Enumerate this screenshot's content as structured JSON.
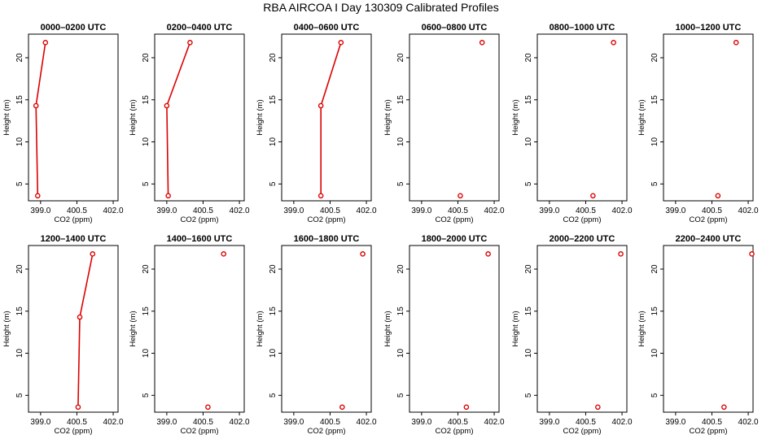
{
  "figure_title": "RBA AIRCOA I  Day 130309  Calibrated Profiles",
  "chart_data": [
    {
      "type": "line",
      "title": "0000–0200 UTC",
      "xlabel": "CO2 (ppm)",
      "ylabel": "Height (m)",
      "x_ticks": [
        "399.0",
        "400.5",
        "402.0"
      ],
      "y_ticks": [
        "5",
        "10",
        "15",
        "20"
      ],
      "xlim": [
        398.5,
        402.2
      ],
      "ylim": [
        3,
        22.8
      ],
      "connected": true,
      "points": [
        {
          "x": 398.88,
          "y": 3.6
        },
        {
          "x": 398.81,
          "y": 14.3
        },
        {
          "x": 399.2,
          "y": 21.8
        }
      ]
    },
    {
      "type": "line",
      "title": "0200–0400 UTC",
      "xlabel": "CO2 (ppm)",
      "ylabel": "Height (m)",
      "x_ticks": [
        "399.0",
        "400.5",
        "402.0"
      ],
      "y_ticks": [
        "5",
        "10",
        "15",
        "20"
      ],
      "xlim": [
        398.5,
        402.2
      ],
      "ylim": [
        3,
        22.8
      ],
      "connected": true,
      "points": [
        {
          "x": 399.06,
          "y": 3.6
        },
        {
          "x": 399.0,
          "y": 14.3
        },
        {
          "x": 399.96,
          "y": 21.8
        }
      ]
    },
    {
      "type": "line",
      "title": "0400–0600 UTC",
      "xlabel": "CO2 (ppm)",
      "ylabel": "Height (m)",
      "x_ticks": [
        "399.0",
        "400.5",
        "402.0"
      ],
      "y_ticks": [
        "5",
        "10",
        "15",
        "20"
      ],
      "xlim": [
        398.5,
        402.2
      ],
      "ylim": [
        3,
        22.8
      ],
      "connected": true,
      "points": [
        {
          "x": 400.12,
          "y": 3.6
        },
        {
          "x": 400.12,
          "y": 14.3
        },
        {
          "x": 400.95,
          "y": 21.8
        }
      ]
    },
    {
      "type": "scatter",
      "title": "0600–0800 UTC",
      "xlabel": "CO2 (ppm)",
      "ylabel": "Height (m)",
      "x_ticks": [
        "399.0",
        "400.5",
        "402.0"
      ],
      "y_ticks": [
        "5",
        "10",
        "15",
        "20"
      ],
      "xlim": [
        398.5,
        402.2
      ],
      "ylim": [
        3,
        22.8
      ],
      "connected": false,
      "points": [
        {
          "x": 400.6,
          "y": 3.6
        },
        {
          "x": 401.5,
          "y": 21.8
        }
      ]
    },
    {
      "type": "scatter",
      "title": "0800–1000 UTC",
      "xlabel": "CO2 (ppm)",
      "ylabel": "Height (m)",
      "x_ticks": [
        "399.0",
        "400.5",
        "402.0"
      ],
      "y_ticks": [
        "5",
        "10",
        "15",
        "20"
      ],
      "xlim": [
        398.5,
        402.2
      ],
      "ylim": [
        3,
        22.8
      ],
      "connected": false,
      "points": [
        {
          "x": 400.8,
          "y": 3.6
        },
        {
          "x": 401.65,
          "y": 21.8
        }
      ]
    },
    {
      "type": "scatter",
      "title": "1000–1200 UTC",
      "xlabel": "CO2 (ppm)",
      "ylabel": "Height (m)",
      "x_ticks": [
        "399.0",
        "400.5",
        "402.0"
      ],
      "y_ticks": [
        "5",
        "10",
        "15",
        "20"
      ],
      "xlim": [
        398.5,
        402.2
      ],
      "ylim": [
        3,
        22.8
      ],
      "connected": false,
      "points": [
        {
          "x": 400.75,
          "y": 3.6
        },
        {
          "x": 401.5,
          "y": 21.8
        }
      ]
    },
    {
      "type": "line",
      "title": "1200–1400 UTC",
      "xlabel": "CO2 (ppm)",
      "ylabel": "Height (m)",
      "x_ticks": [
        "399.0",
        "400.5",
        "402.0"
      ],
      "y_ticks": [
        "5",
        "10",
        "15",
        "20"
      ],
      "xlim": [
        398.5,
        402.2
      ],
      "ylim": [
        3,
        22.8
      ],
      "connected": true,
      "points": [
        {
          "x": 400.55,
          "y": 3.6
        },
        {
          "x": 400.62,
          "y": 14.3
        },
        {
          "x": 401.15,
          "y": 21.8
        }
      ]
    },
    {
      "type": "scatter",
      "title": "1400–1600 UTC",
      "xlabel": "CO2 (ppm)",
      "ylabel": "Height (m)",
      "x_ticks": [
        "399.0",
        "400.5",
        "402.0"
      ],
      "y_ticks": [
        "5",
        "10",
        "15",
        "20"
      ],
      "xlim": [
        398.5,
        402.2
      ],
      "ylim": [
        3,
        22.8
      ],
      "connected": false,
      "points": [
        {
          "x": 400.7,
          "y": 3.6
        },
        {
          "x": 401.35,
          "y": 21.8
        }
      ]
    },
    {
      "type": "scatter",
      "title": "1600–1800 UTC",
      "xlabel": "CO2 (ppm)",
      "ylabel": "Height (m)",
      "x_ticks": [
        "399.0",
        "400.5",
        "402.0"
      ],
      "y_ticks": [
        "5",
        "10",
        "15",
        "20"
      ],
      "xlim": [
        398.5,
        402.2
      ],
      "ylim": [
        3,
        22.8
      ],
      "connected": false,
      "points": [
        {
          "x": 401.0,
          "y": 3.6
        },
        {
          "x": 401.85,
          "y": 21.8
        }
      ]
    },
    {
      "type": "scatter",
      "title": "1800–2000 UTC",
      "xlabel": "CO2 (ppm)",
      "ylabel": "Height (m)",
      "x_ticks": [
        "399.0",
        "400.5",
        "402.0"
      ],
      "y_ticks": [
        "5",
        "10",
        "15",
        "20"
      ],
      "xlim": [
        398.5,
        402.2
      ],
      "ylim": [
        3,
        22.8
      ],
      "connected": false,
      "points": [
        {
          "x": 400.85,
          "y": 3.6
        },
        {
          "x": 401.75,
          "y": 21.8
        }
      ]
    },
    {
      "type": "scatter",
      "title": "2000–2200 UTC",
      "xlabel": "CO2 (ppm)",
      "ylabel": "Height (m)",
      "x_ticks": [
        "399.0",
        "400.5",
        "402.0"
      ],
      "y_ticks": [
        "5",
        "10",
        "15",
        "20"
      ],
      "xlim": [
        398.5,
        402.2
      ],
      "ylim": [
        3,
        22.8
      ],
      "connected": false,
      "points": [
        {
          "x": 401.0,
          "y": 3.6
        },
        {
          "x": 401.95,
          "y": 21.8
        }
      ]
    },
    {
      "type": "scatter",
      "title": "2200–2400 UTC",
      "xlabel": "CO2 (ppm)",
      "ylabel": "Height (m)",
      "x_ticks": [
        "399.0",
        "400.5",
        "402.0"
      ],
      "y_ticks": [
        "5",
        "10",
        "15",
        "20"
      ],
      "xlim": [
        398.5,
        402.2
      ],
      "ylim": [
        3,
        22.8
      ],
      "connected": false,
      "points": [
        {
          "x": 401.0,
          "y": 3.6
        },
        {
          "x": 402.15,
          "y": 21.8
        }
      ]
    }
  ],
  "colors": {
    "series": "#dd0000",
    "axis": "#000000",
    "background": "#ffffff"
  }
}
